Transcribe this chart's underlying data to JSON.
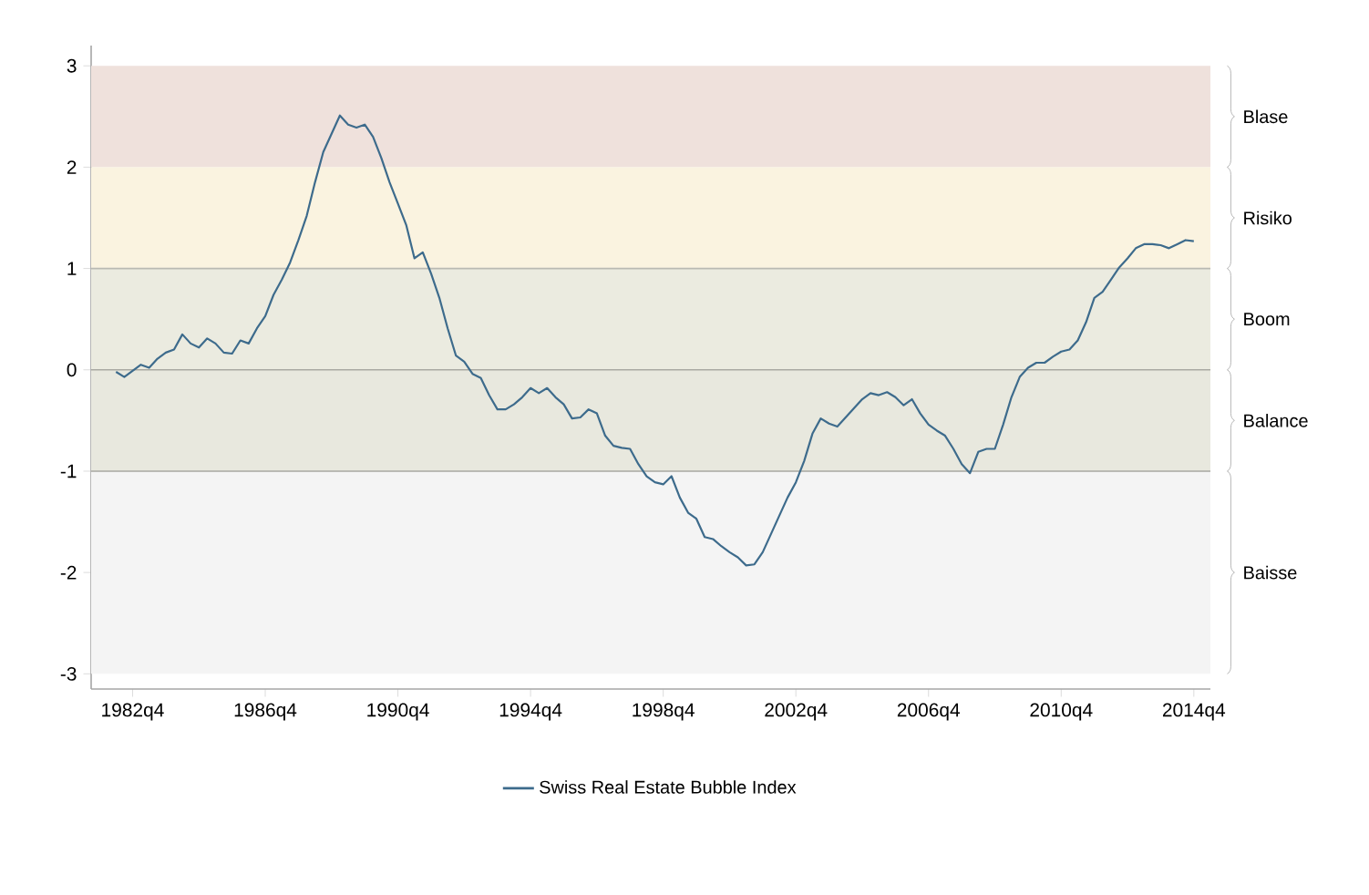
{
  "chart_data": {
    "type": "line",
    "categories": [
      null,
      null,
      "1982q4",
      null,
      null,
      null,
      null,
      null,
      null,
      null,
      null,
      null,
      null,
      null,
      null,
      null,
      null,
      null,
      "1986q4",
      null,
      null,
      null,
      null,
      null,
      null,
      null,
      null,
      null,
      null,
      null,
      null,
      null,
      null,
      null,
      "1990q4",
      null,
      null,
      null,
      null,
      null,
      null,
      null,
      null,
      null,
      null,
      null,
      null,
      null,
      null,
      null,
      "1994q4",
      null,
      null,
      null,
      null,
      null,
      null,
      null,
      null,
      null,
      null,
      null,
      null,
      null,
      null,
      null,
      "1998q4",
      null,
      null,
      null,
      null,
      null,
      null,
      null,
      null,
      null,
      null,
      null,
      null,
      null,
      null,
      null,
      "2002q4",
      null,
      null,
      null,
      null,
      null,
      null,
      null,
      null,
      null,
      null,
      null,
      null,
      null,
      null,
      null,
      "2006q4",
      null,
      null,
      null,
      null,
      null,
      null,
      null,
      null,
      null,
      null,
      null,
      null,
      null,
      null,
      null,
      "2010q4",
      null,
      null,
      null,
      null,
      null,
      null,
      null,
      null,
      null,
      null,
      null,
      null,
      null,
      null,
      null,
      "2014q4"
    ],
    "series": [
      {
        "name": "Swiss Real Estate Bubble Index",
        "color": "#3d6b8c",
        "values": [
          -0.02,
          -0.07,
          -0.01,
          0.05,
          0.02,
          0.11,
          0.17,
          0.2,
          0.35,
          0.26,
          0.22,
          0.31,
          0.26,
          0.17,
          0.16,
          0.29,
          0.26,
          0.41,
          0.53,
          0.74,
          0.89,
          1.06,
          1.28,
          1.52,
          1.85,
          2.15,
          2.33,
          2.51,
          2.42,
          2.39,
          2.42,
          2.3,
          2.09,
          1.85,
          1.64,
          1.43,
          1.1,
          1.16,
          0.95,
          0.71,
          0.41,
          0.14,
          0.08,
          -0.04,
          -0.08,
          -0.25,
          -0.39,
          -0.39,
          -0.34,
          -0.27,
          -0.18,
          -0.23,
          -0.18,
          -0.27,
          -0.34,
          -0.48,
          -0.47,
          -0.39,
          -0.43,
          -0.65,
          -0.75,
          -0.77,
          -0.78,
          -0.93,
          -1.05,
          -1.11,
          -1.13,
          -1.05,
          -1.26,
          -1.41,
          -1.47,
          -1.65,
          -1.67,
          -1.74,
          -1.8,
          -1.85,
          -1.93,
          -1.92,
          -1.8,
          -1.62,
          -1.44,
          -1.26,
          -1.11,
          -0.9,
          -0.63,
          -0.48,
          -0.53,
          -0.56,
          -0.47,
          -0.38,
          -0.29,
          -0.23,
          -0.25,
          -0.22,
          -0.27,
          -0.35,
          -0.29,
          -0.43,
          -0.54,
          -0.6,
          -0.65,
          -0.78,
          -0.93,
          -1.02,
          -0.81,
          -0.78,
          -0.78,
          -0.54,
          -0.27,
          -0.07,
          0.02,
          0.07,
          0.07,
          0.13,
          0.18,
          0.2,
          0.29,
          0.47,
          0.71,
          0.77,
          0.89,
          1.01,
          1.1,
          1.2,
          1.24,
          1.24,
          1.23,
          1.2,
          1.24,
          1.28,
          1.27
        ]
      }
    ],
    "ylim": [
      -3.15,
      3.2
    ],
    "yticks": [
      -3,
      -2,
      -1,
      0,
      1,
      2,
      3
    ],
    "bands": [
      {
        "axis": "y",
        "from": 2,
        "to": 3,
        "label": "Blase",
        "color": "#efe1dc"
      },
      {
        "axis": "y",
        "from": 1,
        "to": 2,
        "label": "Risiko",
        "color": "#faf3e0"
      },
      {
        "axis": "y",
        "from": 0,
        "to": 1,
        "label": "Boom",
        "color": "#ebebe0"
      },
      {
        "axis": "y",
        "from": -1,
        "to": 0,
        "label": "Balance",
        "color": "#e8e8de"
      },
      {
        "axis": "y",
        "from": -3,
        "to": -1,
        "label": "Baisse",
        "color": "#f4f4f4"
      }
    ],
    "ref_lines": [
      {
        "axis": "y",
        "value": 1,
        "color": "#b9b9b2"
      },
      {
        "axis": "y",
        "value": 0,
        "color": "#a9a9a2"
      },
      {
        "axis": "y",
        "value": -1,
        "color": "#a9a9a2"
      }
    ],
    "legend": "bottom",
    "grid": false
  }
}
